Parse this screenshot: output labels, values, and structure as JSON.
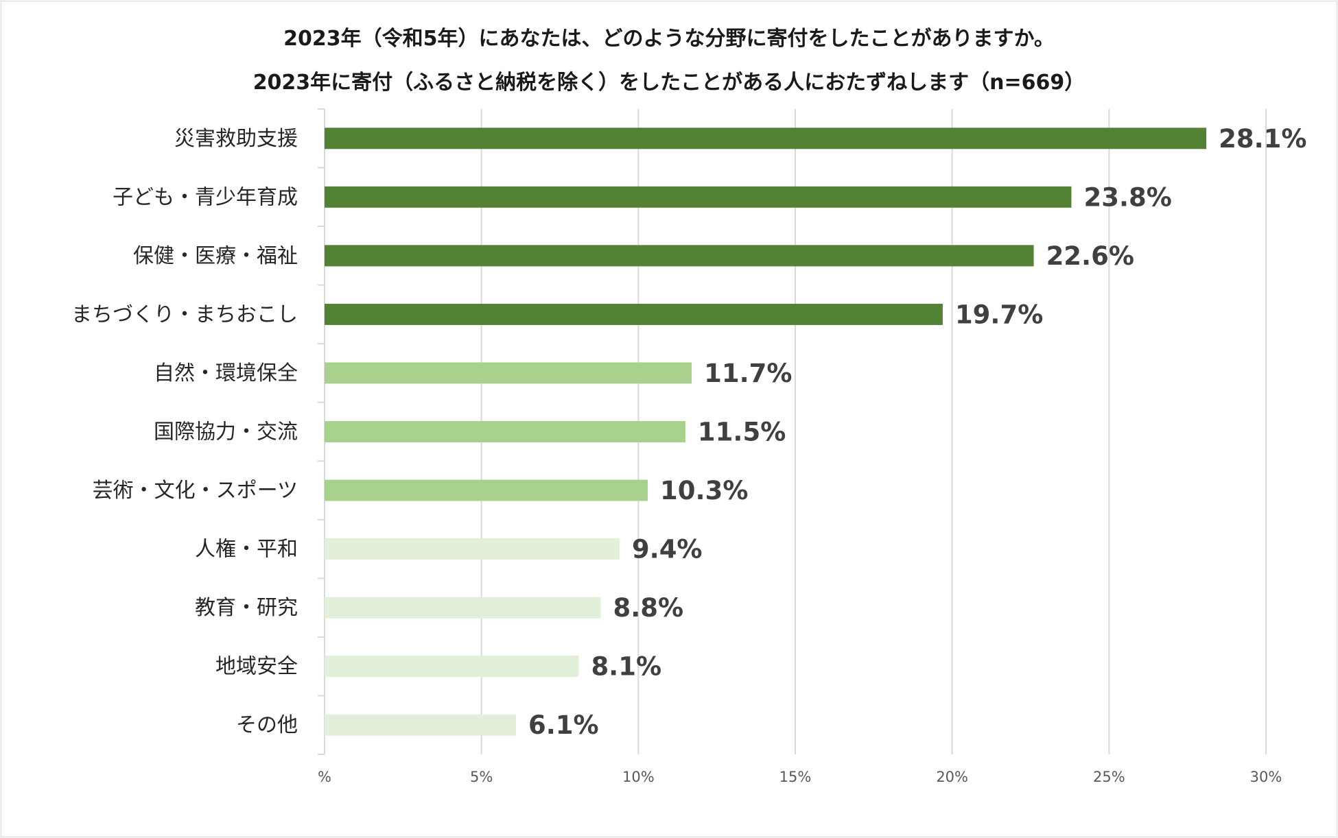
{
  "chart_data": {
    "type": "bar",
    "orientation": "horizontal",
    "title": "2023年（令和5年）にあなたは、どのような分野に寄付をしたことがありますか。",
    "subtitle": "2023年に寄付（ふるさと納税を除く）をしたことがある人におたずねします（n=669）",
    "categories": [
      "災害救助支援",
      "子ども・青少年育成",
      "保健・医療・福祉",
      "まちづくり・まちおこし",
      "自然・環境保全",
      "国際協力・交流",
      "芸術・文化・スポーツ",
      "人権・平和",
      "教育・研究",
      "地域安全",
      "その他"
    ],
    "values": [
      28.1,
      23.8,
      22.6,
      19.7,
      11.7,
      11.5,
      10.3,
      9.4,
      8.8,
      8.1,
      6.1
    ],
    "value_labels": [
      "28.1%",
      "23.8%",
      "22.6%",
      "19.7%",
      "11.7%",
      "11.5%",
      "10.3%",
      "9.4%",
      "8.8%",
      "8.1%",
      "6.1%"
    ],
    "bar_colors": [
      "#548235",
      "#548235",
      "#548235",
      "#548235",
      "#a9d18e",
      "#a9d18e",
      "#a9d18e",
      "#e2efd9",
      "#e2efd9",
      "#e2efd9",
      "#e2efd9"
    ],
    "xlim": [
      0,
      30
    ],
    "xticks": [
      0,
      5,
      10,
      15,
      20,
      25,
      30
    ],
    "xtick_labels": [
      "%",
      "5%",
      "10%",
      "15%",
      "20%",
      "25%",
      "30%"
    ],
    "xlabel": "",
    "ylabel": "",
    "grid": true,
    "legend": "none"
  }
}
